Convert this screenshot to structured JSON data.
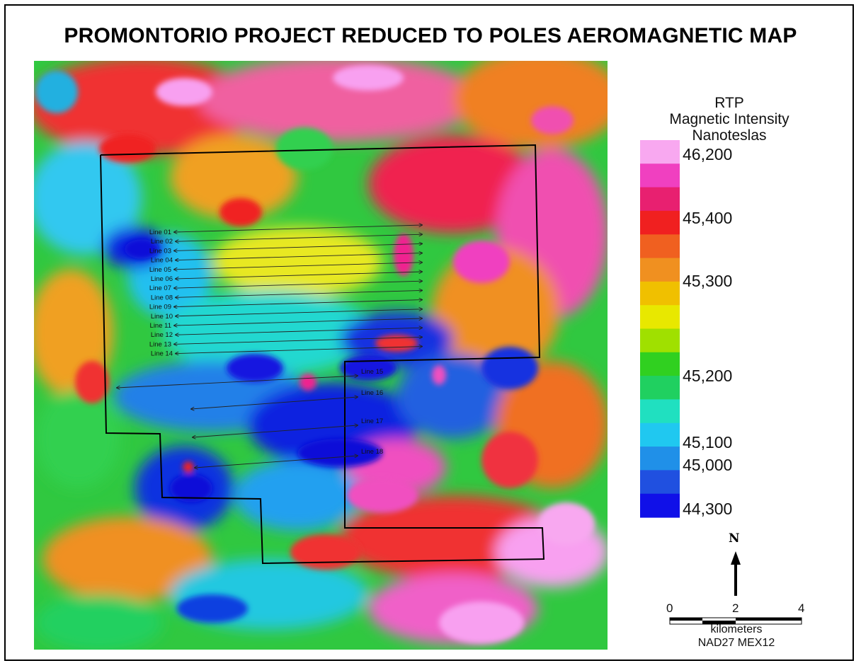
{
  "title": "PROMONTORIO PROJECT REDUCED TO POLES AEROMAGNETIC MAP",
  "legend": {
    "heading_lines": [
      "RTP",
      "Magnetic Intensity",
      "Nanoteslas"
    ],
    "ticks": [
      "46,200",
      "45,400",
      "45,300",
      "45,200",
      "45,100",
      "45,000",
      "44,300"
    ],
    "colors": [
      "#f8a8f0",
      "#f040c0",
      "#e82070",
      "#f02020",
      "#f06020",
      "#f09020",
      "#f0c000",
      "#e8e800",
      "#a0e000",
      "#30d020",
      "#20d060",
      "#20e0c0",
      "#20c8f0",
      "#2090e8",
      "#2050e0",
      "#1010e8"
    ]
  },
  "survey_lines": {
    "west_group": [
      "Line 01",
      "Line 02",
      "Line 03",
      "Line 04",
      "Line 05",
      "Line 06",
      "Line 07",
      "Line 08",
      "Line 09",
      "Line 10",
      "Line 11",
      "Line 12",
      "Line 13",
      "Line 14"
    ],
    "east_group": [
      "Line 15",
      "Line 16",
      "Line 17",
      "Line 18"
    ]
  },
  "north_arrow": {
    "label": "N"
  },
  "scale_bar": {
    "ticks": [
      "0",
      "2",
      "4"
    ],
    "unit": "kilometers",
    "datum": "NAD27 MEX12"
  }
}
